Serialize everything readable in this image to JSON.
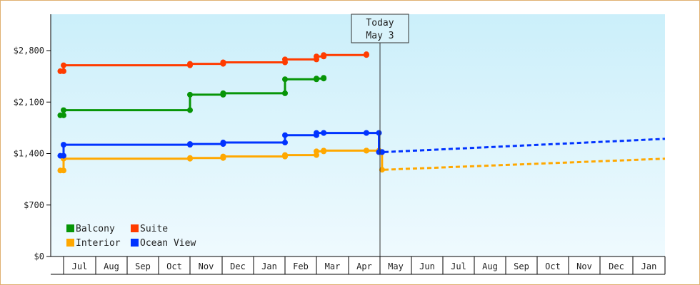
{
  "chart_data": {
    "type": "line",
    "title": "",
    "xlabel": "",
    "ylabel": "",
    "ylim": [
      0,
      2800
    ],
    "y_ticks": [
      0,
      700,
      1400,
      2100,
      2800
    ],
    "y_tick_labels": [
      "$0",
      "$700",
      "$1,400",
      "$2,100",
      "$2,800"
    ],
    "x_month_labels": [
      "Jul",
      "Aug",
      "Sep",
      "Oct",
      "Nov",
      "Dec",
      "Jan",
      "Feb",
      "Mar",
      "Apr",
      "May",
      "Jun",
      "Jul",
      "Aug",
      "Sep",
      "Oct",
      "Nov",
      "Dec",
      "Jan"
    ],
    "grid": false,
    "legend_position": "bottom-left",
    "today_marker": {
      "line1": "Today",
      "line2": "May 3"
    },
    "series": [
      {
        "name": "Balcony",
        "color": "#079507",
        "step": true,
        "x": [
          "Jun 23",
          "Jul 1",
          "Nov 1",
          "Dec 2",
          "Feb 1",
          "Mar 1",
          "Mar 8"
        ],
        "values": [
          1920,
          1990,
          2200,
          2220,
          2410,
          2420,
          2430
        ],
        "forecast": null
      },
      {
        "name": "Suite",
        "color": "#ff3c00",
        "step": true,
        "x": [
          "Jun 23",
          "Jul 1",
          "Nov 1",
          "Dec 2",
          "Feb 1",
          "Mar 1",
          "Mar 8",
          "Apr 18"
        ],
        "values": [
          2520,
          2600,
          2620,
          2640,
          2680,
          2720,
          2740,
          2750
        ],
        "forecast": null
      },
      {
        "name": "Interior",
        "color": "#ffa800",
        "step": true,
        "x": [
          "Jun 23",
          "Jul 1",
          "Nov 1",
          "Dec 2",
          "Feb 1",
          "Mar 1",
          "Mar 8",
          "Apr 18",
          "Apr 30",
          "May 3"
        ],
        "values": [
          1170,
          1330,
          1340,
          1360,
          1380,
          1430,
          1440,
          1440,
          1420,
          1180
        ],
        "forecast": {
          "x": [
            "May 3",
            "Jan 31"
          ],
          "values": [
            1180,
            1330
          ]
        }
      },
      {
        "name": "Ocean View",
        "color": "#0033ff",
        "step": true,
        "x": [
          "Jun 23",
          "Jul 1",
          "Nov 1",
          "Dec 2",
          "Feb 1",
          "Mar 1",
          "Mar 8",
          "Apr 18",
          "Apr 30",
          "May 3"
        ],
        "values": [
          1370,
          1520,
          1530,
          1550,
          1650,
          1680,
          1680,
          1680,
          1420,
          1420
        ],
        "forecast": {
          "x": [
            "May 3",
            "Jan 31"
          ],
          "values": [
            1420,
            1600
          ]
        }
      }
    ]
  }
}
